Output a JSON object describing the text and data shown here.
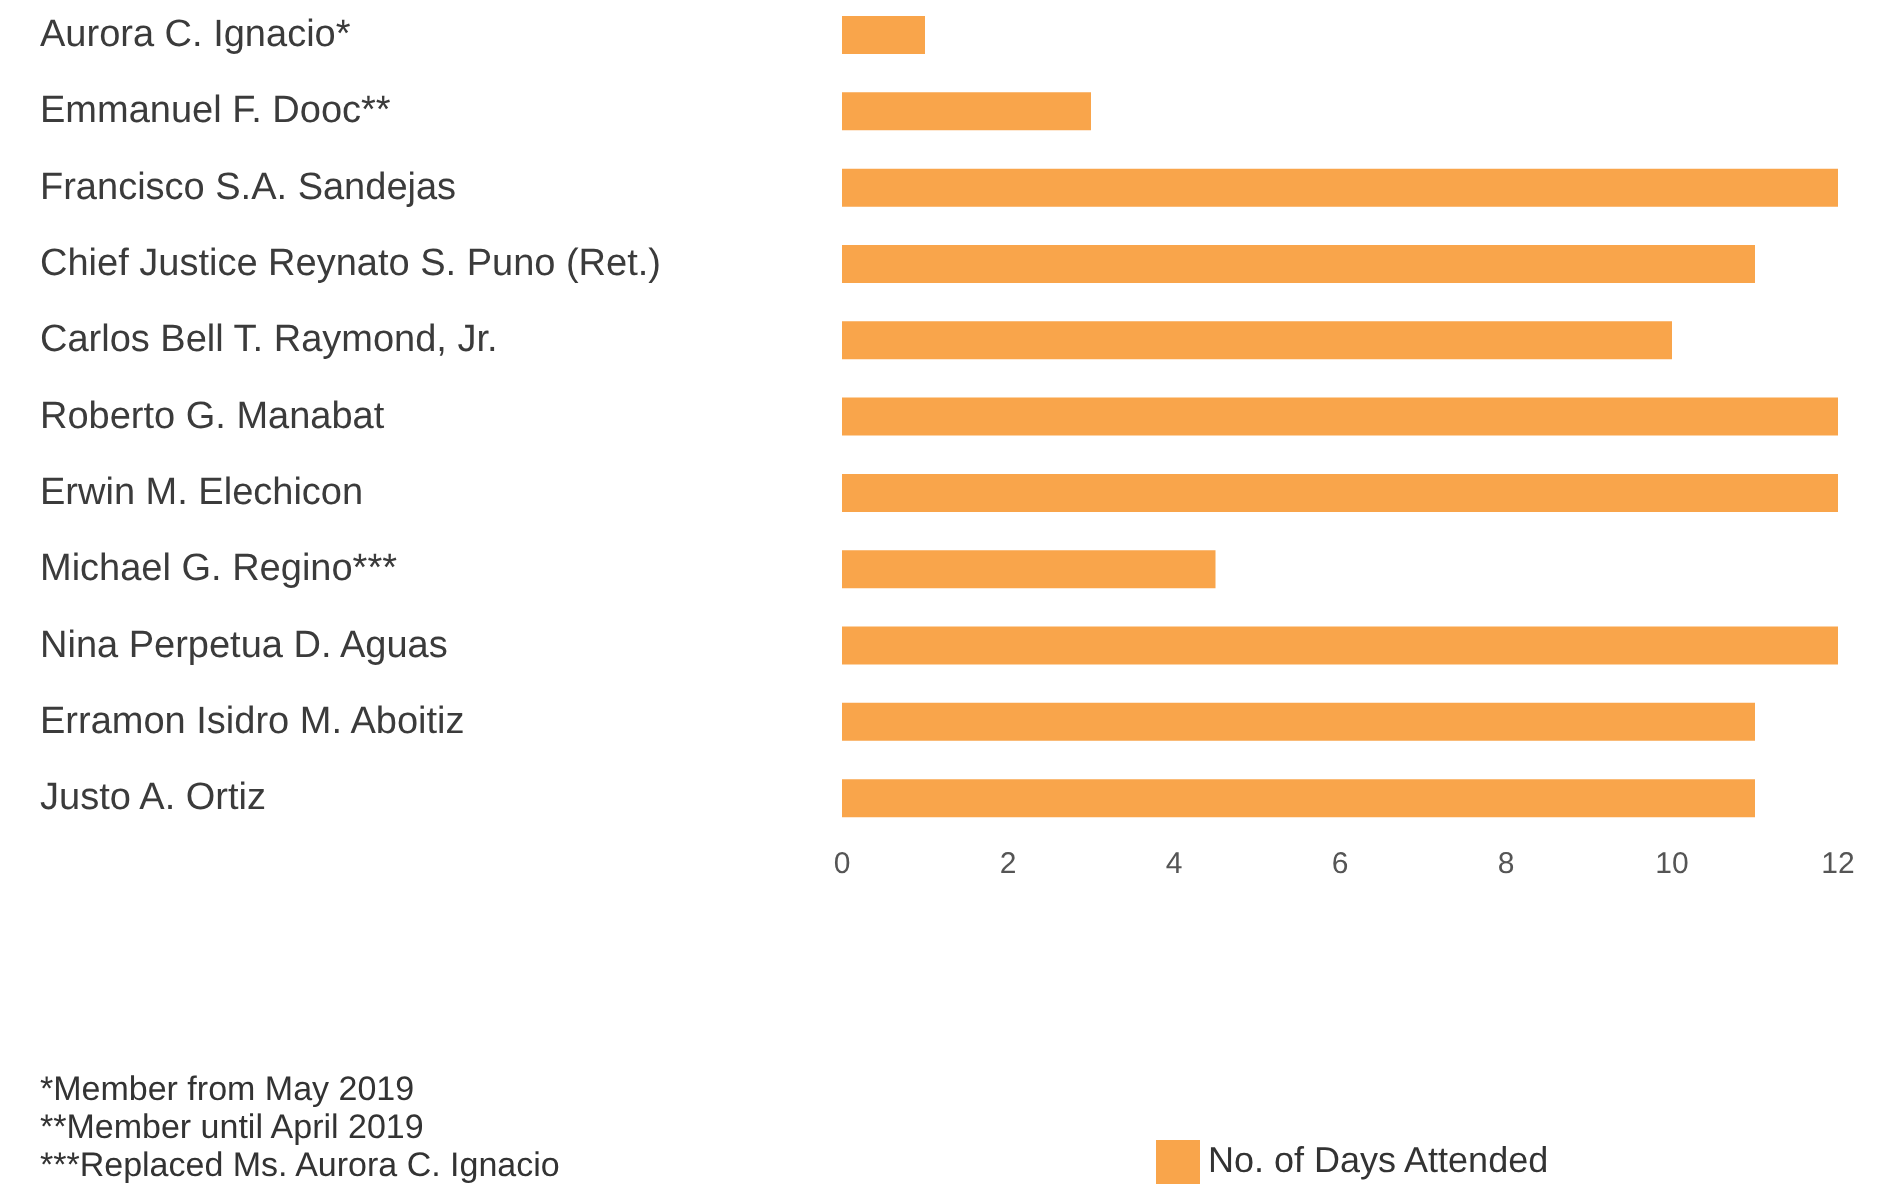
{
  "chart_data": {
    "type": "bar",
    "orientation": "horizontal",
    "categories": [
      "Aurora C. Ignacio*",
      "Emmanuel F. Dooc**",
      "Francisco S.A. Sandejas",
      "Chief Justice Reynato S. Puno (Ret.)",
      "Carlos Bell T. Raymond, Jr.",
      "Roberto G. Manabat",
      "Erwin M. Elechicon",
      "Michael G. Regino***",
      "Nina Perpetua D. Aguas",
      "Erramon Isidro M. Aboitiz",
      "Justo A. Ortiz"
    ],
    "series": [
      {
        "name": "No. of Days Attended",
        "color": "#f9a54b",
        "values": [
          1,
          3,
          12,
          11,
          10,
          12,
          12,
          4.5,
          12,
          11,
          11
        ]
      }
    ],
    "xlim": [
      0,
      12
    ],
    "xticks": [
      0,
      2,
      4,
      6,
      8,
      10,
      12
    ],
    "grid": false,
    "legend": "bottom",
    "annotations": [
      "*Member from May 2019",
      "**Member until April 2019",
      "***Replaced Ms. Aurora C. Ignacio"
    ]
  }
}
